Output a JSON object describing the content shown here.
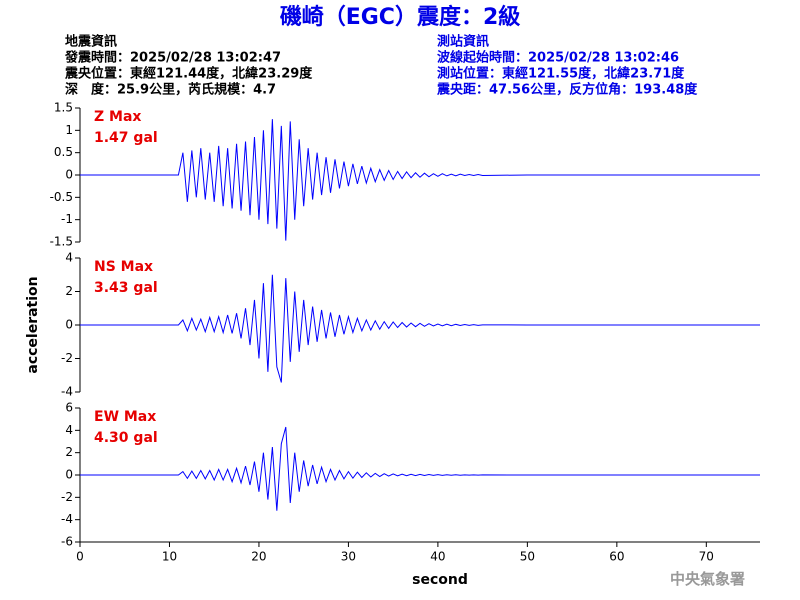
{
  "header": {
    "title": "磯崎（EGC）震度：2級",
    "left": [
      "地震資訊",
      "發震時間：2025/02/28 13:02:47",
      "震央位置：東經121.44度，北緯23.29度",
      "深　度：25.9公里，芮氏規模：4.7"
    ],
    "right": [
      "測站資訊",
      "波線起始時間：2025/02/28 13:02:46",
      "測站位置：東經121.55度，北緯23.71度",
      "震央距：47.56公里，反方位角：193.48度"
    ]
  },
  "footer": "中央氣象署",
  "chart_data": [
    {
      "type": "line",
      "color": "#0000ff",
      "annotations": [
        "Z Max",
        "1.47 gal"
      ],
      "annotation_color": "#e60000",
      "xlim": [
        0,
        76
      ],
      "ylim": [
        -1.5,
        1.5
      ],
      "yticks": [
        1.5,
        1,
        0.5,
        0,
        -0.5,
        -1,
        -1.5
      ],
      "x": [
        0,
        11,
        11.5,
        12,
        12.5,
        13,
        13.5,
        14,
        14.5,
        15,
        15.5,
        16,
        16.5,
        17,
        17.5,
        18,
        18.5,
        19,
        19.5,
        20,
        20.5,
        21,
        21.5,
        22,
        22.5,
        23,
        23.5,
        24,
        24.5,
        25,
        25.5,
        26,
        26.5,
        27,
        27.5,
        28,
        28.5,
        29,
        29.5,
        30,
        30.5,
        31,
        31.5,
        32,
        32.5,
        33,
        33.5,
        34,
        34.5,
        35,
        35.5,
        36,
        36.5,
        37,
        37.5,
        38,
        38.5,
        39,
        39.5,
        40,
        40.5,
        41,
        41.5,
        42,
        42.5,
        43,
        43.5,
        44,
        44.5,
        45,
        50,
        76
      ],
      "values": [
        0,
        0,
        0.5,
        -0.6,
        0.55,
        -0.5,
        0.6,
        -0.55,
        0.5,
        -0.6,
        0.65,
        -0.7,
        0.6,
        -0.75,
        0.7,
        -0.8,
        0.75,
        -0.9,
        0.85,
        -1.0,
        1.0,
        -1.1,
        1.25,
        -1.2,
        1.1,
        -1.47,
        1.2,
        -1.0,
        0.8,
        -0.7,
        0.6,
        -0.55,
        0.5,
        -0.45,
        0.4,
        -0.4,
        0.35,
        -0.3,
        0.3,
        -0.25,
        0.25,
        -0.2,
        0.2,
        -0.18,
        0.15,
        -0.15,
        0.12,
        -0.12,
        0.1,
        -0.1,
        0.08,
        -0.08,
        0.07,
        -0.06,
        0.05,
        -0.05,
        0.04,
        -0.04,
        0.03,
        -0.03,
        0.03,
        -0.02,
        0.02,
        -0.02,
        0.02,
        -0.01,
        0.01,
        -0.01,
        0.01,
        -0.01,
        0,
        0
      ]
    },
    {
      "type": "line",
      "color": "#0000ff",
      "annotations": [
        "NS Max",
        "3.43 gal"
      ],
      "annotation_color": "#e60000",
      "ylabel": "acceleration",
      "xlim": [
        0,
        76
      ],
      "ylim": [
        -4,
        4
      ],
      "yticks": [
        4,
        2,
        0,
        -2,
        -4
      ],
      "x": [
        0,
        11,
        11.5,
        12,
        12.5,
        13,
        13.5,
        14,
        14.5,
        15,
        15.5,
        16,
        16.5,
        17,
        17.5,
        18,
        18.5,
        19,
        19.5,
        20,
        20.5,
        21,
        21.5,
        22,
        22.5,
        23,
        23.5,
        24,
        24.5,
        25,
        25.5,
        26,
        26.5,
        27,
        27.5,
        28,
        28.5,
        29,
        29.5,
        30,
        30.5,
        31,
        31.5,
        32,
        32.5,
        33,
        33.5,
        34,
        34.5,
        35,
        35.5,
        36,
        36.5,
        37,
        37.5,
        38,
        38.5,
        39,
        39.5,
        40,
        40.5,
        41,
        41.5,
        42,
        42.5,
        43,
        43.5,
        44,
        44.5,
        45,
        50,
        76
      ],
      "values": [
        0,
        0,
        0.3,
        -0.35,
        0.4,
        -0.3,
        0.35,
        -0.4,
        0.45,
        -0.4,
        0.5,
        -0.45,
        0.6,
        -0.5,
        0.7,
        -0.8,
        1.0,
        -1.2,
        1.5,
        -2.0,
        2.5,
        -2.8,
        3.0,
        -2.5,
        -3.43,
        2.8,
        -2.2,
        2.0,
        -1.6,
        1.5,
        -1.2,
        1.1,
        -1.0,
        0.9,
        -0.8,
        0.75,
        -0.7,
        0.6,
        -0.55,
        0.5,
        -0.45,
        0.4,
        -0.35,
        0.3,
        -0.3,
        0.25,
        -0.25,
        0.2,
        -0.2,
        0.18,
        -0.15,
        0.15,
        -0.12,
        0.12,
        -0.1,
        0.1,
        -0.08,
        0.08,
        -0.06,
        0.06,
        -0.05,
        0.05,
        -0.04,
        0.04,
        -0.03,
        0.03,
        -0.02,
        0.02,
        -0.02,
        0.01,
        0,
        0
      ]
    },
    {
      "type": "line",
      "color": "#0000ff",
      "annotations": [
        "EW Max",
        "4.30 gal"
      ],
      "annotation_color": "#e60000",
      "xlabel": "second",
      "xlim": [
        0,
        76
      ],
      "xticks": [
        0,
        10,
        20,
        30,
        40,
        50,
        60,
        70
      ],
      "ylim": [
        -6,
        6
      ],
      "yticks": [
        6,
        4,
        2,
        0,
        -2,
        -4,
        -6
      ],
      "x": [
        0,
        11,
        11.5,
        12,
        12.5,
        13,
        13.5,
        14,
        14.5,
        15,
        15.5,
        16,
        16.5,
        17,
        17.5,
        18,
        18.5,
        19,
        19.5,
        20,
        20.5,
        21,
        21.5,
        22,
        22.5,
        23,
        23.5,
        24,
        24.5,
        25,
        25.5,
        26,
        26.5,
        27,
        27.5,
        28,
        28.5,
        29,
        29.5,
        30,
        30.5,
        31,
        31.5,
        32,
        32.5,
        33,
        33.5,
        34,
        34.5,
        35,
        35.5,
        36,
        36.5,
        37,
        37.5,
        38,
        38.5,
        39,
        39.5,
        40,
        40.5,
        41,
        41.5,
        42,
        42.5,
        43,
        43.5,
        44,
        44.5,
        45,
        50,
        76
      ],
      "values": [
        0,
        0,
        0.3,
        -0.3,
        0.35,
        -0.3,
        0.4,
        -0.35,
        0.4,
        -0.45,
        0.5,
        -0.45,
        0.5,
        -0.6,
        0.6,
        -0.7,
        0.8,
        -0.9,
        1.2,
        -1.5,
        2.0,
        -2.2,
        2.5,
        -3.2,
        2.8,
        4.3,
        -2.5,
        2.0,
        -1.5,
        1.3,
        -1.0,
        0.9,
        -0.8,
        0.7,
        -0.6,
        0.5,
        -0.45,
        0.4,
        -0.35,
        0.3,
        -0.28,
        0.25,
        -0.22,
        0.2,
        -0.18,
        0.15,
        -0.14,
        0.12,
        -0.1,
        0.1,
        -0.08,
        0.08,
        -0.07,
        0.06,
        -0.05,
        0.05,
        -0.04,
        0.04,
        -0.03,
        0.03,
        -0.03,
        0.02,
        -0.02,
        0.02,
        -0.02,
        0.01,
        -0.01,
        0.01,
        -0.01,
        0.01,
        0,
        0
      ]
    }
  ]
}
